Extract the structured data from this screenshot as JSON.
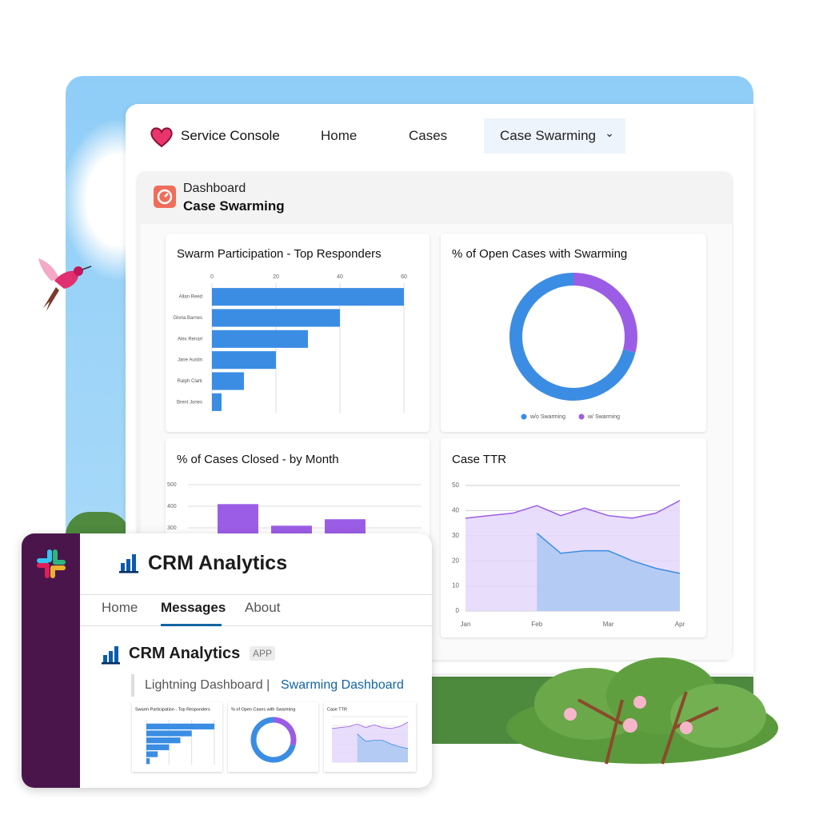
{
  "console": {
    "brand": "Service Console",
    "nav": [
      "Home",
      "Cases",
      "Case Swarming"
    ],
    "active": 2
  },
  "dashboard": {
    "label": "Dashboard",
    "title": "Case Swarming"
  },
  "chart_data": [
    {
      "type": "hbar",
      "title": "Swarm Participation - Top Responders",
      "categories": [
        "Allan Reed",
        "Gloria Barnes",
        "Alex Renarl",
        "Jane Austin",
        "Ralph Clark",
        "Brent Jones"
      ],
      "values": [
        60,
        40,
        30,
        20,
        10,
        3
      ],
      "color": "#3b8de3",
      "xlim": [
        0,
        60
      ],
      "xticks": [
        0,
        20,
        40,
        60
      ],
      "grid": true
    },
    {
      "type": "donut",
      "title": "% of Open Cases with Swarming",
      "categories": [
        "w/o Swarming",
        "w/ Swarming"
      ],
      "values": [
        71,
        29
      ],
      "colors": [
        "#3b8de3",
        "#9b5de5"
      ],
      "legend": "bottom"
    },
    {
      "type": "bar",
      "title": "% of Cases Closed - by Month",
      "categories": [
        null,
        null,
        null
      ],
      "values": [
        410,
        310,
        340
      ],
      "color": "#9b5de5",
      "ylim": [
        0,
        500
      ],
      "yticks": [
        300,
        400,
        500
      ],
      "grid": true
    },
    {
      "type": "area",
      "title": "Case TTR",
      "categories": [
        "Jan",
        null,
        null,
        "Feb",
        null,
        null,
        "Mar",
        null,
        null,
        "Apr"
      ],
      "series": [
        {
          "color": "#9b5de5",
          "values": [
            37,
            38,
            39,
            42,
            38,
            41,
            38,
            37,
            39,
            44
          ]
        },
        {
          "color": "#3b8de3",
          "values": [
            null,
            null,
            null,
            31,
            23,
            24,
            24,
            20,
            17,
            15
          ]
        }
      ],
      "ylim": [
        0,
        50
      ],
      "yticks": [
        0,
        10,
        20,
        30,
        40,
        50
      ],
      "grid": true
    }
  ],
  "slack": {
    "app": "CRM Analytics",
    "tabs": [
      "Home",
      "Messages",
      "About"
    ],
    "active_tab": 1,
    "message": {
      "sender": "CRM Analytics",
      "badge": "APP",
      "link_prefix": "Lightning Dashboard |",
      "link": "Swarming Dashboard"
    }
  }
}
